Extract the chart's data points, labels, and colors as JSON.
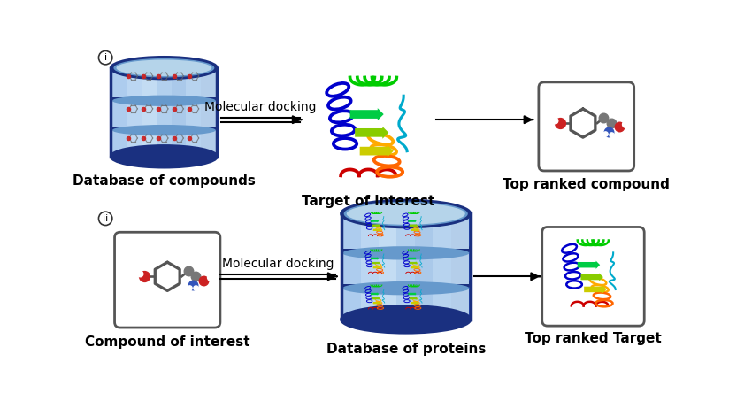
{
  "background_color": "#ffffff",
  "top_row": {
    "label_i": "i",
    "box1_label": "Database of compounds",
    "arrow1_label": "Molecular docking",
    "box2_label": "Target of interest",
    "box3_label": "Top ranked compound"
  },
  "bottom_row": {
    "label_ii": "ii",
    "box1_label": "Compound of interest",
    "arrow1_label": "Molecular docking",
    "box2_label": "Database of proteins",
    "box3_label": "Top ranked Target"
  },
  "db_color_outer": "#1a3080",
  "db_color_body": "#2244aa",
  "db_color_shelf_top": "#6699cc",
  "db_color_shelf_bg": "#aaccee",
  "db_color_shelf_band": "#88aadd",
  "arrow_color": "#000000",
  "label_fontsize": 11,
  "protein_colors": [
    "#0000cc",
    "#0055ff",
    "#00aaff",
    "#00cc44",
    "#88cc00",
    "#cccc00",
    "#ffaa00",
    "#ff6600",
    "#ff2200",
    "#cc0000"
  ],
  "mol_bond_color": "#555555",
  "mol_o_color": "#cc2222",
  "mol_n_color": "#3355bb",
  "mol_c_color": "#777777"
}
